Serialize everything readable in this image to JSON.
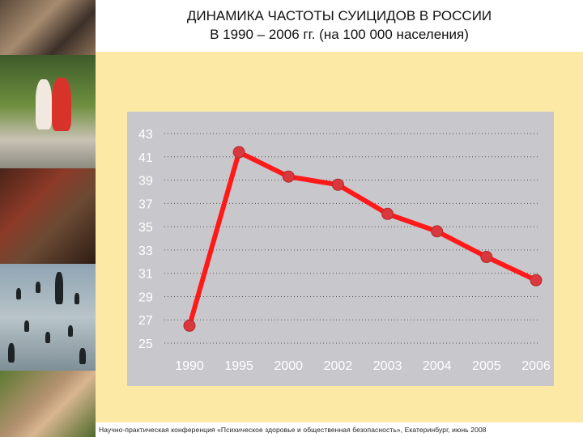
{
  "slide": {
    "title_line1": "ДИНАМИКА ЧАСТОТЫ СУИЦИДОВ В РОССИИ",
    "title_line2": "В 1990 – 2006 гг. (на 100 000 населения)",
    "footer": "Научно-практическая конференция «Психическое здоровье и общественная безопасность», Екатеринбург, июнь 2008"
  },
  "colors": {
    "line": "#ff1a1a",
    "marker": "#d9383c",
    "panel": "#c8c8cc",
    "background": "#fde9a6"
  },
  "chart_data": {
    "type": "line",
    "categories": [
      "1990",
      "1995",
      "2000",
      "2002",
      "2003",
      "2004",
      "2005",
      "2006"
    ],
    "values": [
      26.5,
      41.4,
      39.3,
      38.6,
      36.1,
      34.6,
      32.4,
      30.4
    ],
    "yticks": [
      43,
      41,
      39,
      37,
      35,
      33,
      31,
      29,
      27,
      25
    ],
    "ylim": [
      25,
      43
    ],
    "grid": true,
    "legend": false
  }
}
